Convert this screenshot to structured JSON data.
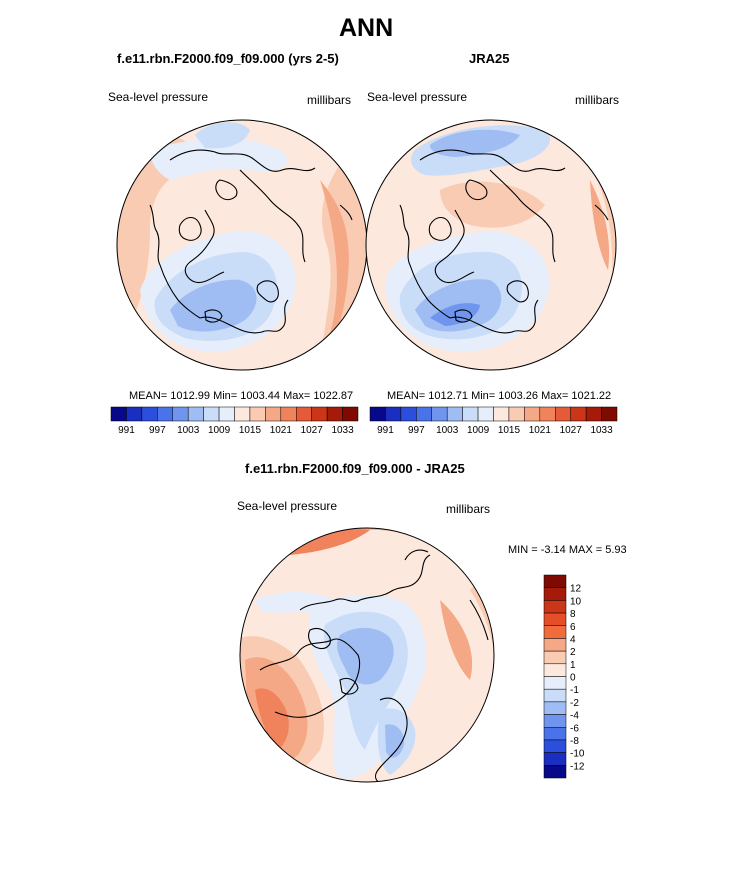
{
  "chart_data": {
    "type": "heatmap",
    "title": "ANN",
    "panels": [
      {
        "title": "f.e11.rbn.F2000.f09_f09.000 (yrs 2-5)",
        "variable": "Sea-level pressure",
        "units": "millibars",
        "stats": {
          "mean": "1012.99",
          "min": "1003.44",
          "max": "1022.87"
        },
        "stats_text": "MEAN= 1012.99  Min= 1003.44  Max= 1022.87",
        "colorbar_ticks": [
          "991",
          "997",
          "1003",
          "1009",
          "1015",
          "1021",
          "1027",
          "1033"
        ]
      },
      {
        "title": "JRA25",
        "variable": "Sea-level pressure",
        "units": "millibars",
        "stats": {
          "mean": "1012.71",
          "min": "1003.26",
          "max": "1021.22"
        },
        "stats_text": "MEAN= 1012.71  Min= 1003.26  Max= 1021.22",
        "colorbar_ticks": [
          "991",
          "997",
          "1003",
          "1009",
          "1015",
          "1021",
          "1027",
          "1033"
        ]
      },
      {
        "title": "f.e11.rbn.F2000.f09_f09.000 - JRA25",
        "variable": "Sea-level pressure",
        "units": "millibars",
        "stats": {
          "min": "-3.14",
          "max": "5.93"
        },
        "stats_text": "MIN =  -3.14 MAX =   5.93",
        "colorbar_ticks": [
          "12",
          "10",
          "8",
          "6",
          "4",
          "2",
          "1",
          "0",
          "-1",
          "-2",
          "-4",
          "-6",
          "-8",
          "-10",
          "-12"
        ]
      }
    ],
    "abs_colors": [
      "#08088a",
      "#1a2fbf",
      "#2b4fdc",
      "#4a73ea",
      "#6f95ee",
      "#9fbdf2",
      "#c9dcf8",
      "#e6eefb",
      "#fce8dc",
      "#f9cbb3",
      "#f5a886",
      "#f0825c",
      "#e55a37",
      "#cc3618",
      "#a51a08",
      "#7e0a02"
    ],
    "diff_colors": [
      "#7e0a02",
      "#a51a08",
      "#cc3618",
      "#e54e26",
      "#f26b3c",
      "#f5a886",
      "#f9cbb3",
      "#fce8dc",
      "#e6eefb",
      "#c9dcf8",
      "#9fbdf2",
      "#6f95ee",
      "#4a73ea",
      "#2b4fdc",
      "#1a2fbf",
      "#08088a"
    ]
  }
}
